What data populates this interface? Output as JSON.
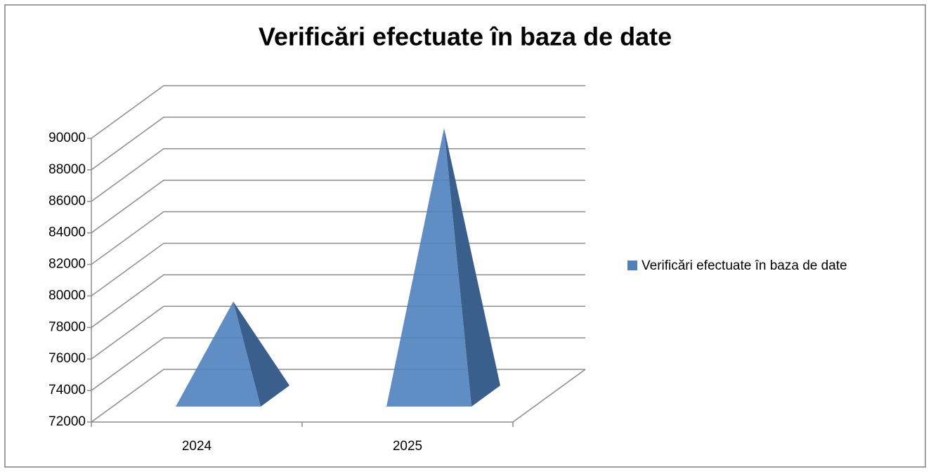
{
  "chart_data": {
    "type": "pyramid3d",
    "title": "Verificări efectuate în baza de date",
    "categories": [
      "2024",
      "2025"
    ],
    "series": [
      {
        "name": "Verificări efectuate în baza de date",
        "color": "#4f81bd",
        "values": [
          78000,
          89000
        ]
      }
    ],
    "ylim": [
      72000,
      90000
    ],
    "yticks": [
      72000,
      74000,
      76000,
      78000,
      80000,
      82000,
      84000,
      86000,
      88000,
      90000
    ],
    "grid": true,
    "legend": "right"
  }
}
